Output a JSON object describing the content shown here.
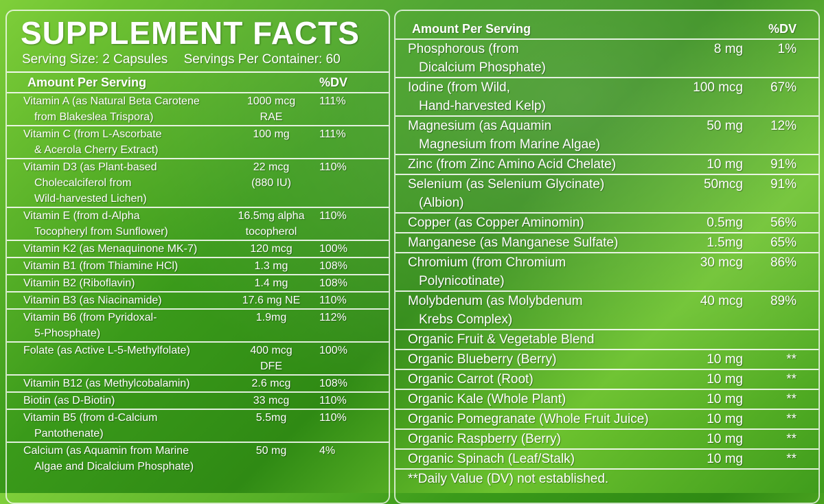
{
  "title": "SUPPLEMENT FACTS",
  "serving_size": "Serving Size: 2 Capsules",
  "servings_per_container": "Servings Per Container: 60",
  "left": {
    "header": {
      "amount": "Amount Per Serving",
      "dv": "%DV"
    },
    "rows": [
      {
        "name": "Vitamin A (as Natural Beta Carotene",
        "sub": "from Blakeslea Trispora)",
        "amount": "1000 mcg",
        "amount_sub": "RAE",
        "dv": "111%"
      },
      {
        "name": "Vitamin C (from L-Ascorbate",
        "sub": "& Acerola Cherry Extract)",
        "amount": "100 mg",
        "amount_sub": "",
        "dv": "111%"
      },
      {
        "name": "Vitamin D3 (as Plant-based",
        "sub": "Cholecalciferol from",
        "sub2": "Wild-harvested Lichen)",
        "amount": "22 mcg",
        "amount_sub": "(880 IU)",
        "dv": "110%"
      },
      {
        "name": "Vitamin E (from d-Alpha",
        "sub": "Tocopheryl from Sunflower)",
        "amount": "16.5mg alpha",
        "amount_sub": "tocopherol",
        "dv": "110%"
      },
      {
        "name": "Vitamin K2 (as Menaquinone MK-7)",
        "amount": "120 mcg",
        "dv": "100%"
      },
      {
        "name": "Vitamin B1 (from Thiamine HCl)",
        "amount": "1.3 mg",
        "dv": "108%"
      },
      {
        "name": "Vitamin B2 (Riboflavin)",
        "amount": "1.4 mg",
        "dv": "108%"
      },
      {
        "name": "Vitamin B3 (as Niacinamide)",
        "amount": "17.6 mg NE",
        "dv": "110%"
      },
      {
        "name": "Vitamin B6 (from Pyridoxal-",
        "sub": "5-Phosphate)",
        "amount": "1.9mg",
        "dv": "112%"
      },
      {
        "name": "Folate (as Active L-5-Methylfolate)",
        "amount": "400 mcg",
        "amount_sub": "DFE",
        "dv": "100%"
      },
      {
        "name": "Vitamin B12 (as Methylcobalamin)",
        "amount": "2.6 mcg",
        "dv": "108%"
      },
      {
        "name": "Biotin (as D-Biotin)",
        "amount": "33 mcg",
        "dv": "110%"
      },
      {
        "name": "Vitamin B5 (from d-Calcium",
        "sub": "Pantothenate)",
        "amount": "5.5mg",
        "dv": "110%"
      },
      {
        "name": "Calcium (as Aquamin from Marine",
        "sub": "Algae and Dicalcium Phosphate)",
        "amount": "50 mg",
        "dv": "4%"
      }
    ]
  },
  "right": {
    "header": {
      "amount": "Amount Per Serving",
      "dv": "%DV"
    },
    "rows": [
      {
        "name": "Phosphorous (from",
        "sub": "Dicalcium Phosphate)",
        "amount": "8 mg",
        "dv": "1%"
      },
      {
        "name": "Iodine (from Wild,",
        "sub": "Hand-harvested Kelp)",
        "amount": "100 mcg",
        "dv": "67%"
      },
      {
        "name": "Magnesium (as Aquamin",
        "sub": "Magnesium from Marine Algae)",
        "amount": "50 mg",
        "dv": "12%"
      },
      {
        "name": "Zinc (from Zinc Amino Acid Chelate)",
        "amount": "10 mg",
        "dv": "91%"
      },
      {
        "name": "Selenium (as Selenium Glycinate)",
        "sub": "(Albion)",
        "amount": "50mcg",
        "dv": "91%"
      },
      {
        "name": "Copper (as Copper Aminomin)",
        "amount": "0.5mg",
        "dv": "56%"
      },
      {
        "name": "Manganese (as Manganese Sulfate)",
        "amount": "1.5mg",
        "dv": "65%"
      },
      {
        "name": "Chromium (from Chromium",
        "sub": "Polynicotinate)",
        "amount": "30 mcg",
        "dv": "86%"
      },
      {
        "name": "Molybdenum (as Molybdenum",
        "sub": "Krebs Complex)",
        "amount": "40 mcg",
        "dv": "89%"
      },
      {
        "name": "Organic Fruit & Vegetable Blend",
        "amount": "",
        "dv": ""
      },
      {
        "name": "Organic Blueberry (Berry)",
        "amount": "10 mg",
        "dv": "**"
      },
      {
        "name": "Organic Carrot (Root)",
        "amount": "10 mg",
        "dv": "**"
      },
      {
        "name": "Organic Kale (Whole Plant)",
        "amount": "10 mg",
        "dv": "**"
      },
      {
        "name": "Organic Pomegranate (Whole Fruit Juice)",
        "amount": "10 mg",
        "dv": "**"
      },
      {
        "name": "Organic Raspberry (Berry)",
        "amount": "10 mg",
        "dv": "**"
      },
      {
        "name": "Organic Spinach (Leaf/Stalk)",
        "amount": "10 mg",
        "dv": "**"
      }
    ],
    "footnote": "**Daily Value (DV) not established."
  }
}
